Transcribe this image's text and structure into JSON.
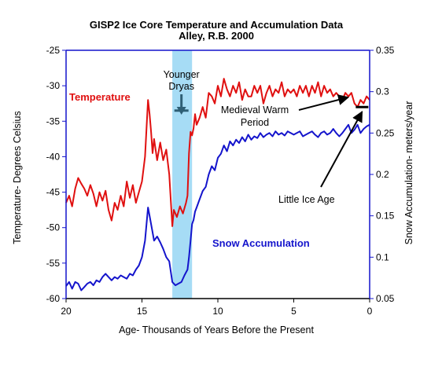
{
  "chart_data": {
    "type": "line",
    "title": "GISP2 Ice Core Temperature and Accumulation Data",
    "subtitle": "Alley, R.B. 2000",
    "xlabel": "Age- Thousands of Years Before the Present",
    "ylabel_left": "Temperature- Degrees Celsius",
    "ylabel_right": "Snow Accumulation- meters/year",
    "xlim": [
      20,
      0
    ],
    "ylim_left": [
      -60,
      -25
    ],
    "ylim_right": [
      0.05,
      0.35
    ],
    "x_ticks": [
      "20",
      "15",
      "10",
      "5",
      "0"
    ],
    "y_ticks_left": [
      "-25",
      "-30",
      "-35",
      "-40",
      "-45",
      "-50",
      "-55",
      "-60"
    ],
    "y_ticks_right": [
      "0.35",
      "0.3",
      "0.25",
      "0.2",
      "0.15",
      "0.1",
      "0.05"
    ],
    "grid": false,
    "shaded_region": {
      "x": [
        13.0,
        11.7
      ],
      "color": "#a6dcf5",
      "label": "Younger Dryas"
    },
    "series": [
      {
        "name": "Temperature",
        "axis": "left",
        "color": "#e01010",
        "x": [
          20.0,
          19.8,
          19.6,
          19.4,
          19.2,
          19.0,
          18.8,
          18.6,
          18.4,
          18.2,
          18.0,
          17.8,
          17.6,
          17.4,
          17.2,
          17.0,
          16.8,
          16.6,
          16.4,
          16.2,
          16.0,
          15.8,
          15.6,
          15.4,
          15.2,
          15.0,
          14.8,
          14.7,
          14.6,
          14.5,
          14.4,
          14.3,
          14.2,
          14.0,
          13.8,
          13.6,
          13.4,
          13.2,
          13.0,
          12.9,
          12.7,
          12.5,
          12.3,
          12.1,
          12.0,
          11.9,
          11.8,
          11.7,
          11.6,
          11.5,
          11.4,
          11.2,
          11.0,
          10.8,
          10.6,
          10.4,
          10.2,
          10.0,
          9.8,
          9.6,
          9.4,
          9.2,
          9.0,
          8.8,
          8.6,
          8.4,
          8.2,
          8.0,
          7.8,
          7.6,
          7.4,
          7.2,
          7.0,
          6.8,
          6.6,
          6.4,
          6.2,
          6.0,
          5.8,
          5.6,
          5.4,
          5.2,
          5.0,
          4.8,
          4.6,
          4.4,
          4.2,
          4.0,
          3.8,
          3.6,
          3.4,
          3.2,
          3.0,
          2.8,
          2.6,
          2.4,
          2.2,
          2.0,
          1.8,
          1.6,
          1.4,
          1.2,
          1.0,
          0.8,
          0.6,
          0.4,
          0.2,
          0.0
        ],
        "y": [
          -46.5,
          -45.5,
          -47.0,
          -44.5,
          -43.0,
          -43.8,
          -44.5,
          -45.5,
          -44.0,
          -45.2,
          -47.0,
          -45.0,
          -46.2,
          -44.8,
          -47.5,
          -49.0,
          -46.5,
          -47.5,
          -45.5,
          -47.0,
          -43.5,
          -45.8,
          -44.0,
          -46.5,
          -45.0,
          -43.5,
          -40.0,
          -36.0,
          -32.0,
          -34.0,
          -36.5,
          -39.5,
          -37.5,
          -40.5,
          -38.0,
          -40.5,
          -39.0,
          -42.5,
          -49.8,
          -47.5,
          -48.5,
          -47.0,
          -48.0,
          -46.5,
          -45.5,
          -39.5,
          -36.5,
          -37.0,
          -36.0,
          -34.0,
          -35.5,
          -34.5,
          -33.0,
          -34.5,
          -31.0,
          -31.5,
          -32.5,
          -30.0,
          -31.5,
          -29.0,
          -30.5,
          -31.5,
          -30.0,
          -31.0,
          -29.5,
          -32.0,
          -30.5,
          -31.5,
          -31.5,
          -30.0,
          -31.0,
          -30.0,
          -32.5,
          -31.0,
          -30.0,
          -31.5,
          -30.5,
          -31.0,
          -29.5,
          -31.5,
          -30.5,
          -31.0,
          -30.5,
          -31.5,
          -30.0,
          -31.0,
          -30.0,
          -31.5,
          -30.0,
          -31.0,
          -29.5,
          -31.5,
          -30.0,
          -31.0,
          -30.5,
          -31.5,
          -31.0,
          -31.5,
          -32.0,
          -31.0,
          -31.5,
          -31.0,
          -32.5,
          -33.0,
          -32.0,
          -32.5,
          -31.5,
          -32.0
        ]
      },
      {
        "name": "Snow Accumulation",
        "axis": "right",
        "color": "#1414cc",
        "x": [
          20.0,
          19.8,
          19.6,
          19.4,
          19.2,
          19.0,
          18.8,
          18.6,
          18.4,
          18.2,
          18.0,
          17.8,
          17.6,
          17.4,
          17.2,
          17.0,
          16.8,
          16.6,
          16.4,
          16.2,
          16.0,
          15.8,
          15.6,
          15.4,
          15.2,
          15.0,
          14.8,
          14.7,
          14.6,
          14.5,
          14.4,
          14.3,
          14.2,
          14.0,
          13.8,
          13.6,
          13.4,
          13.2,
          13.0,
          12.8,
          12.6,
          12.4,
          12.2,
          12.0,
          11.9,
          11.8,
          11.7,
          11.6,
          11.5,
          11.4,
          11.2,
          11.0,
          10.8,
          10.6,
          10.4,
          10.2,
          10.0,
          9.8,
          9.6,
          9.4,
          9.2,
          9.0,
          8.8,
          8.6,
          8.4,
          8.2,
          8.0,
          7.8,
          7.6,
          7.4,
          7.2,
          7.0,
          6.8,
          6.6,
          6.4,
          6.2,
          6.0,
          5.8,
          5.6,
          5.4,
          5.2,
          5.0,
          4.8,
          4.6,
          4.4,
          4.2,
          4.0,
          3.8,
          3.6,
          3.4,
          3.2,
          3.0,
          2.8,
          2.6,
          2.4,
          2.2,
          2.0,
          1.8,
          1.6,
          1.4,
          1.2,
          1.0,
          0.8,
          0.6,
          0.4,
          0.2,
          0.0
        ],
        "y": [
          0.065,
          0.07,
          0.062,
          0.07,
          0.068,
          0.06,
          0.064,
          0.068,
          0.07,
          0.066,
          0.072,
          0.07,
          0.076,
          0.08,
          0.076,
          0.072,
          0.076,
          0.074,
          0.078,
          0.076,
          0.074,
          0.08,
          0.078,
          0.085,
          0.09,
          0.1,
          0.12,
          0.14,
          0.16,
          0.15,
          0.14,
          0.13,
          0.12,
          0.125,
          0.118,
          0.11,
          0.1,
          0.095,
          0.07,
          0.066,
          0.068,
          0.07,
          0.078,
          0.085,
          0.1,
          0.12,
          0.14,
          0.145,
          0.155,
          0.16,
          0.17,
          0.18,
          0.185,
          0.2,
          0.21,
          0.205,
          0.22,
          0.225,
          0.235,
          0.228,
          0.24,
          0.235,
          0.242,
          0.238,
          0.245,
          0.24,
          0.248,
          0.242,
          0.246,
          0.244,
          0.25,
          0.245,
          0.248,
          0.25,
          0.246,
          0.252,
          0.248,
          0.25,
          0.247,
          0.252,
          0.25,
          0.248,
          0.25,
          0.252,
          0.246,
          0.248,
          0.25,
          0.252,
          0.248,
          0.245,
          0.25,
          0.252,
          0.248,
          0.25,
          0.255,
          0.25,
          0.246,
          0.25,
          0.255,
          0.26,
          0.25,
          0.254,
          0.26,
          0.25,
          0.255,
          0.258,
          0.26
        ]
      }
    ],
    "annotations": [
      {
        "text_lines": [
          "Younger",
          "Dryas"
        ],
        "x": 12.4,
        "y": -33.5,
        "type": "down-arrow",
        "color": "#2e5f75"
      },
      {
        "text_lines": [
          "Medieval Warm",
          "Period"
        ],
        "x": 1.0,
        "y": -31.3,
        "type": "arrow"
      },
      {
        "text_lines": [
          "Little Ice Age"
        ],
        "x": 0.5,
        "y": -33.0,
        "type": "arrow"
      }
    ]
  }
}
